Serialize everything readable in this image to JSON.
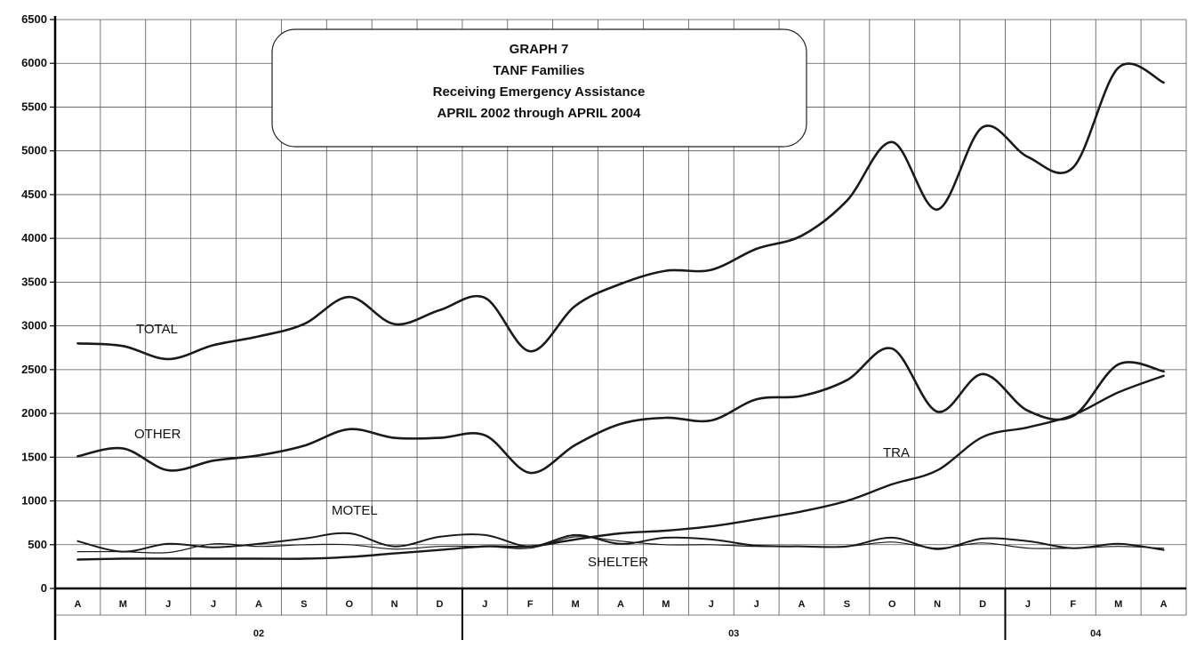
{
  "chart_data": {
    "type": "line",
    "title": [
      "GRAPH 7",
      "TANF Families",
      "Receiving Emergency Assistance",
      "APRIL 2002 through APRIL 2004"
    ],
    "categories": [
      "A",
      "M",
      "J",
      "J",
      "A",
      "S",
      "O",
      "N",
      "D",
      "J",
      "F",
      "M",
      "A",
      "M",
      "J",
      "J",
      "A",
      "S",
      "O",
      "N",
      "D",
      "J",
      "F",
      "M",
      "A"
    ],
    "year_groups": [
      {
        "label": "02",
        "start": 0,
        "end": 8
      },
      {
        "label": "03",
        "start": 9,
        "end": 20
      },
      {
        "label": "04",
        "start": 21,
        "end": 24
      }
    ],
    "ylim": [
      0,
      6500
    ],
    "yticks": [
      0,
      500,
      1000,
      1500,
      2000,
      2500,
      3000,
      3500,
      4000,
      4500,
      5000,
      5500,
      6000,
      6500
    ],
    "grid": true,
    "series": [
      {
        "name": "TOTAL",
        "values": [
          2800,
          2770,
          2620,
          2780,
          2880,
          3020,
          3330,
          3020,
          3180,
          3320,
          2710,
          3230,
          3480,
          3630,
          3640,
          3880,
          4030,
          4430,
          5100,
          4330,
          5270,
          4930,
          4810,
          5950,
          5780
        ]
      },
      {
        "name": "OTHER",
        "values": [
          1510,
          1600,
          1350,
          1460,
          1520,
          1630,
          1820,
          1720,
          1720,
          1750,
          1320,
          1640,
          1880,
          1950,
          1920,
          2160,
          2200,
          2380,
          2740,
          2020,
          2450,
          2030,
          1970,
          2560,
          2480
        ]
      },
      {
        "name": "TRA",
        "values": [
          330,
          340,
          340,
          340,
          340,
          340,
          360,
          400,
          440,
          480,
          480,
          560,
          630,
          660,
          710,
          790,
          880,
          1000,
          1190,
          1350,
          1730,
          1840,
          1980,
          2240,
          2430
        ]
      },
      {
        "name": "MOTEL",
        "values": [
          540,
          420,
          510,
          470,
          510,
          570,
          630,
          480,
          590,
          610,
          480,
          610,
          510,
          580,
          560,
          490,
          480,
          480,
          580,
          450,
          570,
          540,
          460,
          510,
          440
        ]
      },
      {
        "name": "SHELTER",
        "values": [
          420,
          420,
          410,
          510,
          480,
          500,
          500,
          450,
          480,
          480,
          460,
          590,
          540,
          500,
          500,
          480,
          480,
          480,
          530,
          460,
          520,
          460,
          460,
          480,
          460
        ]
      }
    ],
    "series_label_text": {
      "TOTAL": "TOTAL",
      "OTHER": "OTHER",
      "TRA": "TRA",
      "MOTEL": "MOTEL",
      "SHELTER": "SHELTER"
    },
    "colors": {
      "line": "#1a1a1a",
      "grid": "#555555",
      "axis": "#000000",
      "background": "#ffffff"
    }
  }
}
